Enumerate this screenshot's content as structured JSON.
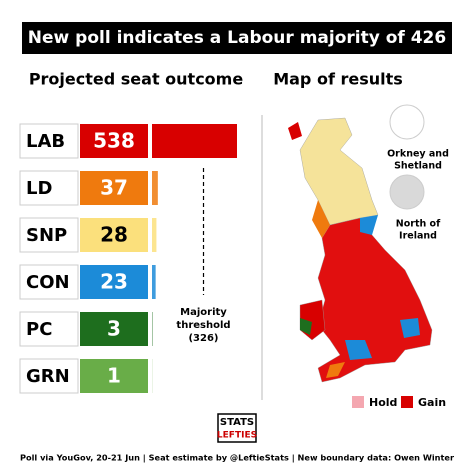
{
  "chart_data": {
    "type": "bar",
    "title": "New poll indicates a Labour majority of 426",
    "subtitle": "Projected seat outcome",
    "categories": [
      "LAB",
      "LD",
      "SNP",
      "CON",
      "PC",
      "GRN"
    ],
    "values": [
      538,
      37,
      28,
      23,
      3,
      1
    ],
    "colors": [
      "#d80000",
      "#ef7a0e",
      "#fbe07c",
      "#1c8bd8",
      "#1e6e1e",
      "#69ad48"
    ],
    "threshold": {
      "label": [
        "Majority",
        "threshold"
      ],
      "value": 326,
      "value_label": "(326)"
    }
  },
  "map": {
    "title": "Map of results",
    "insets": [
      [
        "Orkney and",
        "Shetland"
      ],
      [
        "North of",
        "Ireland"
      ]
    ],
    "legend": [
      "Hold",
      "Gain"
    ]
  },
  "logo": [
    "STATS",
    "LEFTIES"
  ],
  "footer": "Poll via YouGov, 20-21 Jun | Seat estimate by @LeftieStats | New boundary data: Owen Winter"
}
